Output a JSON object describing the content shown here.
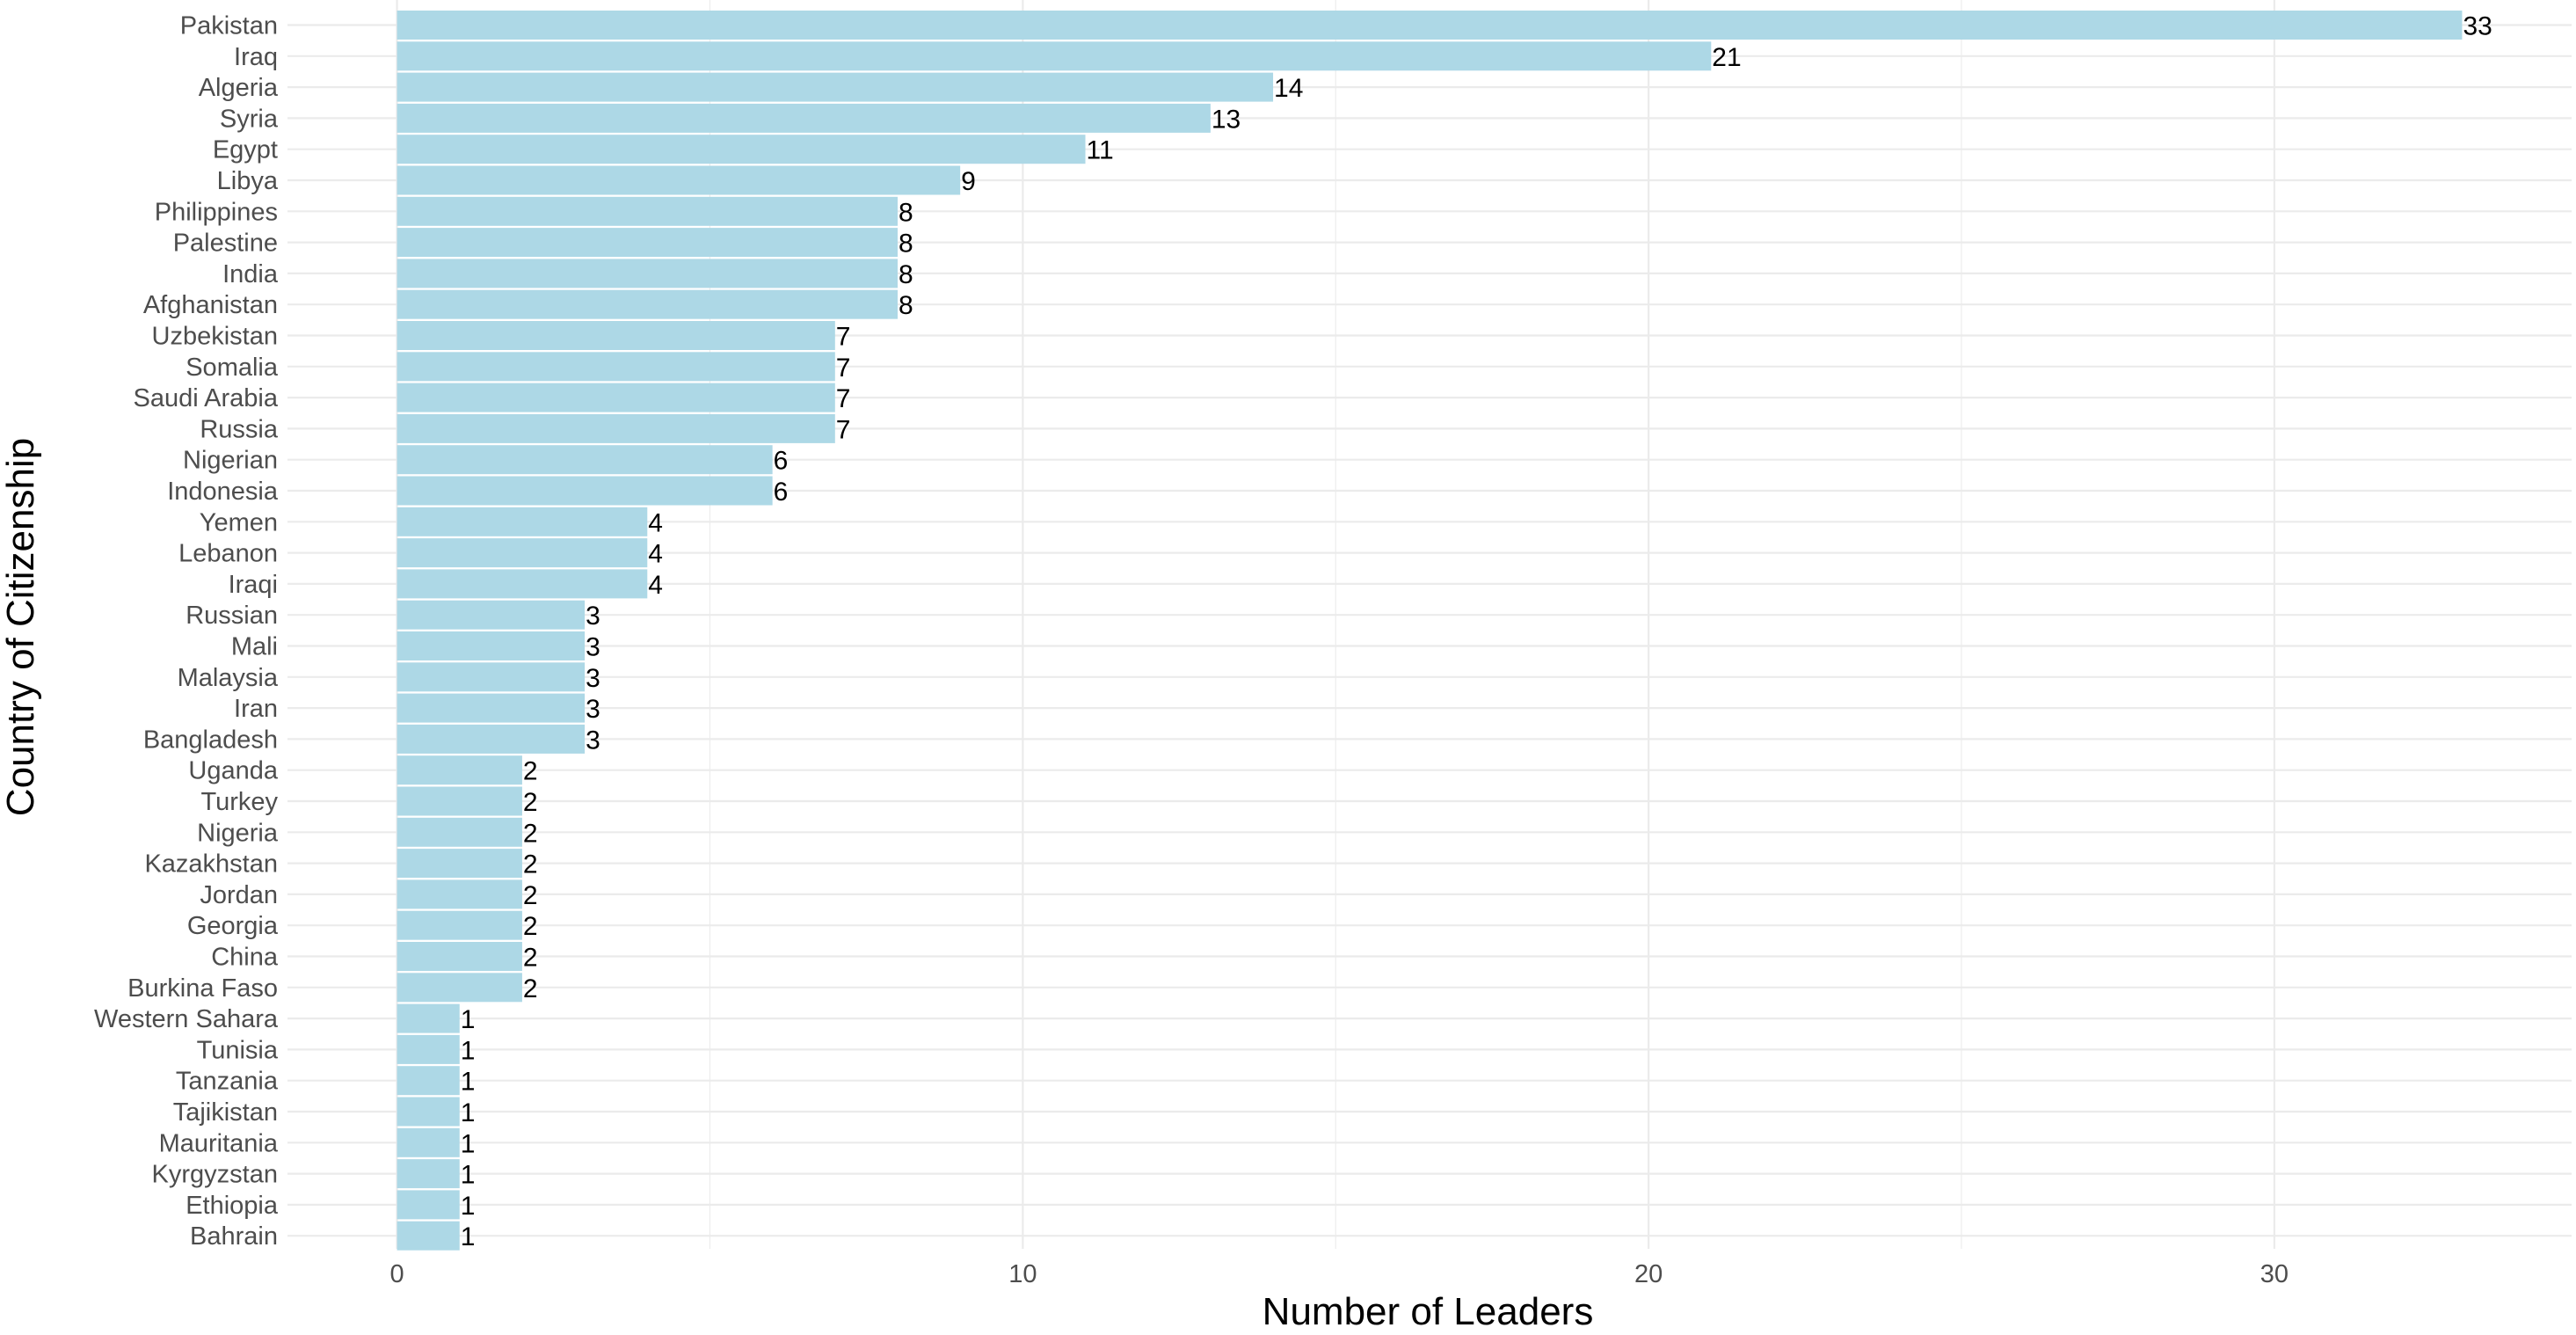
{
  "chart_data": {
    "type": "bar",
    "orientation": "horizontal",
    "title": "",
    "xlabel": "Number of Leaders",
    "ylabel": "Country of Citizenship",
    "xlim": [
      -1.75,
      34.75
    ],
    "x_ticks": [
      0,
      10,
      20,
      30
    ],
    "grid": true,
    "bar_color": "#add8e6",
    "categories": [
      "Pakistan",
      "Iraq",
      "Algeria",
      "Syria",
      "Egypt",
      "Libya",
      "Philippines",
      "Palestine",
      "India",
      "Afghanistan",
      "Uzbekistan",
      "Somalia",
      "Saudi Arabia",
      "Russia",
      "Nigerian",
      "Indonesia",
      "Yemen",
      "Lebanon",
      "Iraqi",
      "Russian",
      "Mali",
      "Malaysia",
      "Iran",
      "Bangladesh",
      "Uganda",
      "Turkey",
      "Nigeria",
      "Kazakhstan",
      "Jordan",
      "Georgia",
      "China",
      "Burkina Faso",
      "Western Sahara",
      "Tunisia",
      "Tanzania",
      "Tajikistan",
      "Mauritania",
      "Kyrgyzstan",
      "Ethiopia",
      "Bahrain"
    ],
    "values": [
      33,
      21,
      14,
      13,
      11,
      9,
      8,
      8,
      8,
      8,
      7,
      7,
      7,
      7,
      6,
      6,
      4,
      4,
      4,
      3,
      3,
      3,
      3,
      3,
      2,
      2,
      2,
      2,
      2,
      2,
      2,
      2,
      1,
      1,
      1,
      1,
      1,
      1,
      1,
      1
    ]
  }
}
